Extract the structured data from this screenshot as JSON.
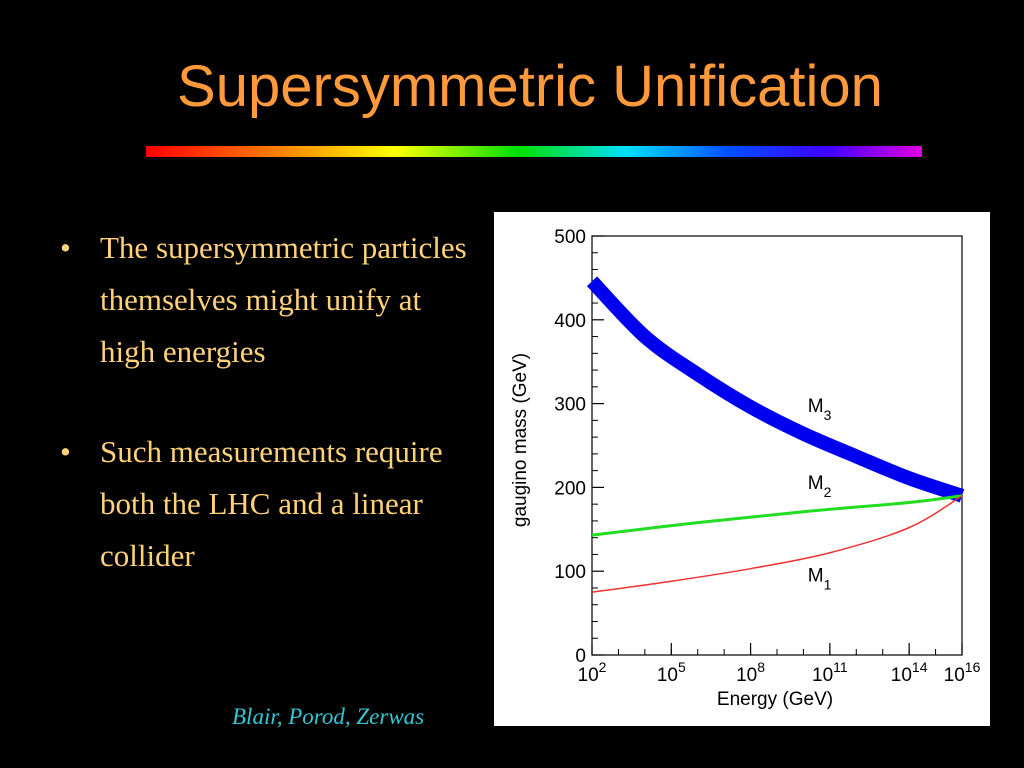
{
  "title": "Supersymmetric Unification",
  "bullets": [
    "The supersymmetric particles themselves might unify at high energies",
    "Such measurements require both the LHC and a linear collider"
  ],
  "credit": "Blair, Porod, Zerwas",
  "chart_data": {
    "type": "line",
    "xlabel": "Energy (GeV)",
    "ylabel": "gaugino mass (GeV)",
    "x_scale": "log10",
    "xlim": [
      100,
      10000000000000000
    ],
    "ylim": [
      0,
      500
    ],
    "x_ticks": [
      {
        "base": "10",
        "exp": "2",
        "value": 100
      },
      {
        "base": "10",
        "exp": "5",
        "value": 100000
      },
      {
        "base": "10",
        "exp": "8",
        "value": 100000000
      },
      {
        "base": "10",
        "exp": "11",
        "value": 100000000000
      },
      {
        "base": "10",
        "exp": "14",
        "value": 100000000000000
      },
      {
        "base": "10",
        "exp": "16",
        "value": 10000000000000000
      }
    ],
    "y_ticks": [
      "0",
      "100",
      "200",
      "300",
      "400",
      "500"
    ],
    "grid": false,
    "series": [
      {
        "name": "M3",
        "label_main": "M",
        "label_sub": "3",
        "color": "#0000ee",
        "band_width": 14,
        "x": [
          100,
          10000,
          1000000,
          100000000,
          10000000000,
          1000000000000,
          100000000000000,
          10000000000000000
        ],
        "y": [
          446,
          380,
          335,
          296,
          264,
          237,
          211,
          190
        ]
      },
      {
        "name": "M2",
        "label_main": "M",
        "label_sub": "2",
        "color": "#22dd22",
        "band_width": 3,
        "x": [
          100,
          1000000,
          10000000000,
          100000000000000,
          10000000000000000
        ],
        "y": [
          143,
          158,
          171,
          182,
          190
        ]
      },
      {
        "name": "M1",
        "label_main": "M",
        "label_sub": "1",
        "color": "#ee3333",
        "band_width": 1.5,
        "x": [
          100,
          100000,
          100000000,
          100000000000,
          100000000000000,
          10000000000000000
        ],
        "y": [
          75,
          88,
          103,
          122,
          152,
          190
        ]
      }
    ]
  }
}
